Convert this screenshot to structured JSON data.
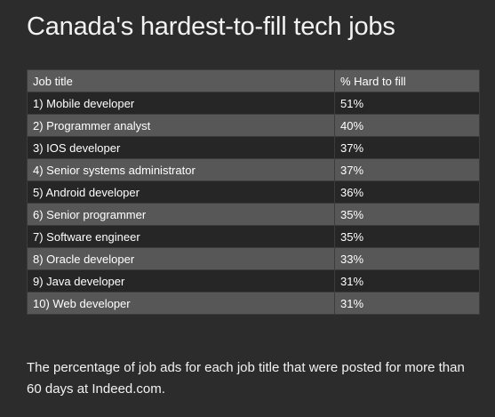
{
  "title": "Canada's hardest-to-fill tech jobs",
  "table": {
    "headers": [
      "Job title",
      "% Hard to fill"
    ],
    "rows": [
      [
        "1) Mobile developer",
        "51%"
      ],
      [
        "2) Programmer analyst",
        "40%"
      ],
      [
        "3) IOS developer",
        "37%"
      ],
      [
        "4) Senior systems administrator",
        "37%"
      ],
      [
        "5) Android developer",
        "36%"
      ],
      [
        "6) Senior programmer",
        "35%"
      ],
      [
        "7) Software engineer",
        "35%"
      ],
      [
        "8) Oracle developer",
        "33%"
      ],
      [
        "9) Java developer",
        "31%"
      ],
      [
        "10) Web developer",
        "31%"
      ]
    ]
  },
  "caption": "The percentage of job ads for each job title that were posted for more than 60 days at Indeed.com.",
  "colors": {
    "background": "#2c2c2c",
    "header_row": "#5a5a5a",
    "row_dark": "#262626",
    "row_light": "#575757",
    "text": "#ffffff"
  }
}
